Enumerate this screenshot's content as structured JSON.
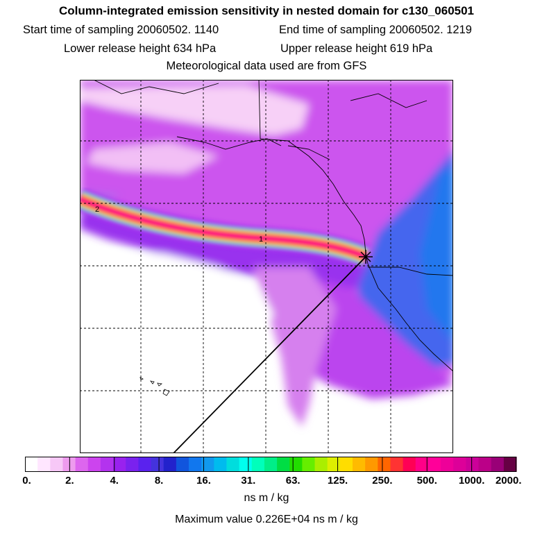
{
  "header": {
    "title": "Column-integrated emission sensitivity in nested domain for c130_060501",
    "start_time": "Start time of sampling 20060502.  1140",
    "end_time": "End time of sampling 20060502.  1219",
    "lower_release": "Lower release height  634 hPa",
    "upper_release": "Upper release height  619 hPa",
    "met_data": "Meteorological data used are from GFS"
  },
  "map": {
    "plume_labels": [
      "2",
      "1"
    ]
  },
  "colorbar": {
    "tick_labels": [
      "0.",
      "2.",
      "4.",
      "8.",
      "16.",
      "31.",
      "63.",
      "125.",
      "250.",
      "500.",
      "1000.",
      "2000."
    ],
    "colors": [
      "#ffffff",
      "#ffe6ff",
      "#f7c8f7",
      "#ee9bee",
      "#dd66ee",
      "#cc44ee",
      "#b333ee",
      "#9922ee",
      "#7a22ee",
      "#5a22ee",
      "#4433dd",
      "#2222cc",
      "#1155dd",
      "#1177ee",
      "#1199ee",
      "#00bbee",
      "#00dddd",
      "#00ffee",
      "#00ffbb",
      "#00ee88",
      "#00dd44",
      "#22dd00",
      "#66ee00",
      "#aaee00",
      "#ddee00",
      "#ffdd00",
      "#ffbb00",
      "#ff9900",
      "#ff6600",
      "#ff3333",
      "#ff0055",
      "#ff0088",
      "#ff0099",
      "#ee0099",
      "#dd0099",
      "#cc0099",
      "#bb0088",
      "#990077",
      "#660044"
    ],
    "unit": "ns m / kg",
    "maximum": "Maximum value  0.226E+04 ns m / kg"
  }
}
